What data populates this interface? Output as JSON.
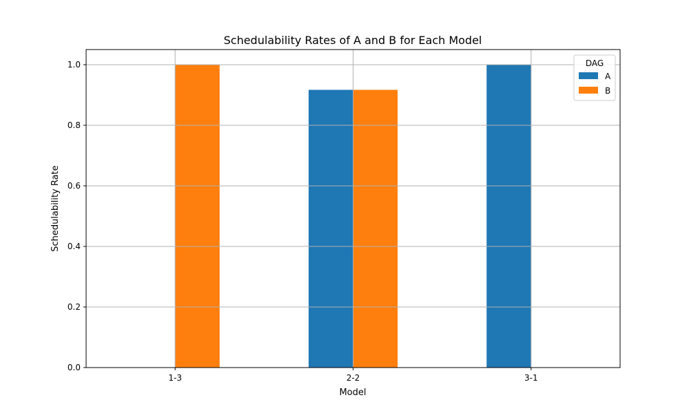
{
  "chart_data": {
    "type": "bar",
    "title": "Schedulability Rates of A and B for Each Model",
    "xlabel": "Model",
    "ylabel": "Schedulability Rate",
    "categories": [
      "1-3",
      "2-2",
      "3-1"
    ],
    "series": [
      {
        "name": "A",
        "color": "#1f77b4",
        "values": [
          0.0,
          0.917,
          1.0
        ]
      },
      {
        "name": "B",
        "color": "#ff7f0e",
        "values": [
          1.0,
          0.917,
          0.0
        ]
      }
    ],
    "ylim": [
      0,
      1.05
    ],
    "yticks": [
      "0.0",
      "0.2",
      "0.4",
      "0.6",
      "0.8",
      "1.0"
    ],
    "grid": true,
    "legend": {
      "title": "DAG",
      "placement": "upper right"
    }
  }
}
